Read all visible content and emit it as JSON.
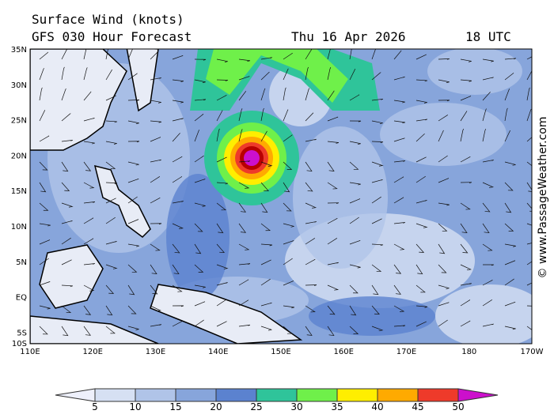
{
  "header": {
    "title": "Surface Wind (knots)",
    "model": "GFS 030 Hour Forecast",
    "date": "Thu 16 Apr 2026",
    "time": "18 UTC"
  },
  "lat_labels": [
    "35N",
    "30N",
    "25N",
    "20N",
    "15N",
    "10N",
    "5N",
    "EQ",
    "5S",
    "10S"
  ],
  "lon_labels": [
    "110E",
    "120E",
    "130E",
    "140E",
    "150E",
    "160E",
    "170E",
    "180",
    "170W"
  ],
  "colorbar": {
    "ticks": [
      5,
      10,
      15,
      20,
      25,
      30,
      35,
      40,
      45,
      50
    ],
    "colors": [
      "#eef0fb",
      "#d6e0f3",
      "#b0c4e8",
      "#87a5db",
      "#5b82cf",
      "#2fc49a",
      "#6ff04a",
      "#ffee00",
      "#ffaa00",
      "#ee3a2a",
      "#b80000",
      "#cc10cc"
    ]
  },
  "watermark": "© www.PassageWeather.com"
}
